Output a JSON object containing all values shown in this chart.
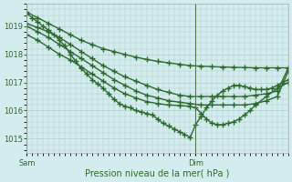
{
  "title": "",
  "xlabel": "Pression niveau de la mer( hPa )",
  "ylabel": "",
  "bg_color": "#d4ecee",
  "grid_color": "#aacccc",
  "line_color": "#2d6a2d",
  "marker": "+",
  "marker_size": 4,
  "line_width": 1.0,
  "ylim": [
    1014.5,
    1019.8
  ],
  "xlim_min": 0,
  "xlim_max": 48,
  "sam_x": 0,
  "dim_x": 31,
  "yticks": [
    1015,
    1016,
    1017,
    1018,
    1019
  ],
  "xtick_positions": [
    0,
    31
  ],
  "xtick_labels": [
    "Sam",
    "Dim"
  ],
  "series": [
    {
      "x": [
        0,
        2,
        4,
        6,
        8,
        10,
        12,
        14,
        16,
        18,
        20,
        22,
        24,
        26,
        28,
        30,
        32,
        34,
        36,
        38,
        40,
        42,
        44,
        46,
        48
      ],
      "y": [
        1019.5,
        1019.3,
        1019.1,
        1018.9,
        1018.7,
        1018.5,
        1018.35,
        1018.2,
        1018.1,
        1018.0,
        1017.9,
        1017.82,
        1017.75,
        1017.7,
        1017.65,
        1017.6,
        1017.58,
        1017.56,
        1017.55,
        1017.54,
        1017.53,
        1017.52,
        1017.52,
        1017.52,
        1017.52
      ]
    },
    {
      "x": [
        0,
        2,
        4,
        6,
        8,
        10,
        12,
        14,
        16,
        18,
        20,
        22,
        24,
        26,
        28,
        30,
        32,
        34,
        36,
        38,
        40,
        42,
        44,
        46,
        48
      ],
      "y": [
        1019.1,
        1018.95,
        1018.8,
        1018.6,
        1018.35,
        1018.1,
        1017.85,
        1017.6,
        1017.4,
        1017.2,
        1017.05,
        1016.9,
        1016.75,
        1016.65,
        1016.55,
        1016.5,
        1016.5,
        1016.5,
        1016.5,
        1016.5,
        1016.5,
        1016.55,
        1016.6,
        1016.7,
        1017.5
      ]
    },
    {
      "x": [
        0,
        2,
        4,
        6,
        8,
        10,
        12,
        14,
        16,
        18,
        20,
        22,
        24,
        26,
        28,
        30,
        32,
        34,
        36,
        38,
        40,
        42,
        44,
        46,
        48
      ],
      "y": [
        1019.0,
        1018.8,
        1018.6,
        1018.35,
        1018.1,
        1017.85,
        1017.6,
        1017.35,
        1017.1,
        1016.9,
        1016.7,
        1016.55,
        1016.45,
        1016.35,
        1016.3,
        1016.25,
        1016.2,
        1016.2,
        1016.2,
        1016.2,
        1016.2,
        1016.25,
        1016.35,
        1016.5,
        1017.4
      ]
    },
    {
      "x": [
        0,
        2,
        4,
        6,
        8,
        10,
        12,
        14,
        16,
        18,
        20,
        22,
        24,
        26,
        28,
        30,
        31,
        32,
        33,
        34,
        35,
        36,
        37,
        38,
        39,
        40,
        41,
        42,
        44,
        46,
        48
      ],
      "y": [
        1018.7,
        1018.5,
        1018.25,
        1018.0,
        1017.8,
        1017.55,
        1017.3,
        1017.05,
        1016.8,
        1016.6,
        1016.45,
        1016.32,
        1016.25,
        1016.2,
        1016.18,
        1016.15,
        1016.1,
        1015.9,
        1015.7,
        1015.55,
        1015.5,
        1015.5,
        1015.55,
        1015.6,
        1015.7,
        1015.85,
        1016.0,
        1016.2,
        1016.5,
        1016.8,
        1017.0
      ]
    },
    {
      "x": [
        0,
        1,
        2,
        3,
        4,
        5,
        6,
        7,
        8,
        9,
        10,
        11,
        12,
        13,
        14,
        15,
        16,
        17,
        18,
        19,
        20,
        21,
        22,
        23,
        24,
        25,
        26,
        27,
        28,
        29,
        30,
        31,
        32,
        33,
        34,
        35,
        36,
        37,
        38,
        39,
        40,
        41,
        42,
        43,
        44,
        45,
        46,
        47,
        48
      ],
      "y": [
        1019.45,
        1019.3,
        1019.15,
        1019.0,
        1018.85,
        1018.7,
        1018.5,
        1018.3,
        1018.0,
        1017.75,
        1017.5,
        1017.3,
        1017.1,
        1016.95,
        1016.8,
        1016.6,
        1016.4,
        1016.25,
        1016.15,
        1016.1,
        1016.0,
        1015.95,
        1015.9,
        1015.85,
        1015.7,
        1015.55,
        1015.45,
        1015.35,
        1015.25,
        1015.15,
        1015.05,
        1015.5,
        1015.8,
        1016.1,
        1016.35,
        1016.55,
        1016.7,
        1016.8,
        1016.9,
        1016.9,
        1016.85,
        1016.8,
        1016.75,
        1016.75,
        1016.75,
        1016.8,
        1016.9,
        1017.0,
        1017.1
      ]
    }
  ]
}
